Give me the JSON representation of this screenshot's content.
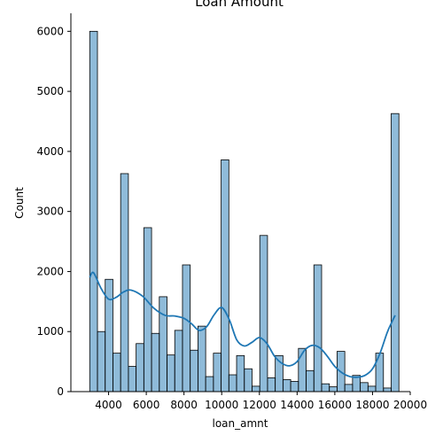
{
  "chart_data": {
    "type": "bar",
    "subtype": "histogram with density curve",
    "title": "Loan Amount",
    "xlabel": "loan_amnt",
    "ylabel": "Count",
    "xlim": [
      2000,
      20000
    ],
    "ylim": [
      0,
      6300
    ],
    "x_ticks": [
      4000,
      6000,
      8000,
      10000,
      12000,
      14000,
      16000,
      18000,
      20000
    ],
    "y_ticks": [
      0,
      1000,
      2000,
      3000,
      4000,
      5000,
      6000
    ],
    "grid": false,
    "bar_color": "#1f77b4",
    "bar_edge_color": "#000000",
    "curve_color": "#1f77b4",
    "bin_start": 3000,
    "bin_width": 410,
    "values": [
      6000,
      1000,
      1870,
      640,
      3630,
      420,
      800,
      2730,
      970,
      1580,
      610,
      1020,
      2110,
      690,
      1090,
      250,
      640,
      3860,
      280,
      600,
      380,
      90,
      2600,
      230,
      600,
      200,
      170,
      720,
      350,
      2110,
      130,
      80,
      670,
      120,
      270,
      150,
      90,
      640,
      60,
      4630
    ],
    "kde": {
      "x": [
        3000,
        3200,
        3600,
        4000,
        4400,
        4800,
        5200,
        5800,
        6400,
        7000,
        7500,
        8000,
        8400,
        8800,
        9200,
        9600,
        10000,
        10400,
        10800,
        11200,
        11600,
        12000,
        12400,
        12800,
        13200,
        13600,
        14000,
        14400,
        14800,
        15200,
        15600,
        16000,
        16400,
        16800,
        17200,
        17600,
        18000,
        18400,
        18800,
        19200
      ],
      "y": [
        1900,
        1980,
        1720,
        1540,
        1570,
        1660,
        1690,
        1590,
        1390,
        1270,
        1260,
        1220,
        1130,
        1020,
        1080,
        1280,
        1400,
        1200,
        860,
        760,
        820,
        900,
        800,
        590,
        470,
        430,
        500,
        690,
        770,
        730,
        590,
        420,
        310,
        250,
        240,
        270,
        380,
        640,
        1000,
        1270
      ]
    }
  }
}
